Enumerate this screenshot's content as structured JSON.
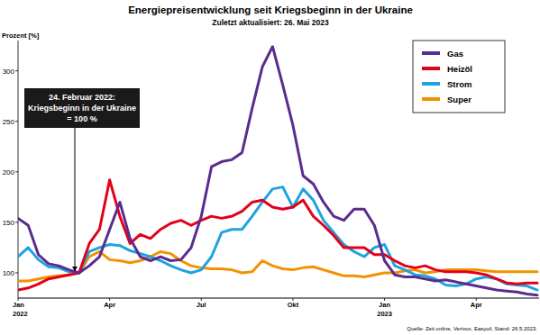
{
  "chart_data": {
    "type": "line",
    "title": "Energiepreisentwicklung seit Kriegsbeginn in der Ukraine",
    "subtitle": "Zuletzt aktualisiert: 26. Mai 2023",
    "y_label": "Prozent [%]",
    "source": "Quelle: Zeit online, Verivox, Easyoil, Stand: 26.5.2023.",
    "annotations": [
      {
        "text": [
          "24. Februar 2022:",
          "Kriegsbeginn in der Ukraine",
          "= 100 %"
        ]
      }
    ],
    "categories": [
      "Jan 2022",
      null,
      null,
      null,
      null,
      null,
      null,
      null,
      null,
      "Apr",
      null,
      null,
      null,
      null,
      null,
      null,
      null,
      null,
      "Jul",
      null,
      null,
      null,
      null,
      null,
      null,
      null,
      null,
      "Okt",
      null,
      null,
      null,
      null,
      null,
      null,
      null,
      null,
      "Jan 2023",
      null,
      null,
      null,
      null,
      null,
      null,
      null,
      null,
      "Apr",
      null,
      null,
      null,
      null,
      null,
      null
    ],
    "series": [
      {
        "name": "Gas",
        "color": "#5b2c8f",
        "values": [
          154,
          147,
          118,
          109,
          107,
          103,
          100,
          107,
          116,
          143,
          170,
          134,
          116,
          112,
          116,
          112,
          113,
          125,
          156,
          205,
          210,
          212,
          219,
          263,
          304,
          324,
          286,
          246,
          196,
          188,
          170,
          156,
          152,
          163,
          163,
          147,
          112,
          98,
          96,
          96,
          94,
          92,
          93,
          91,
          89,
          87,
          85,
          83,
          82,
          81,
          79,
          78
        ]
      },
      {
        "name": "Heizöl",
        "color": "#e3001b",
        "values": [
          83,
          85,
          89,
          94,
          96,
          98,
          100,
          129,
          143,
          192,
          156,
          129,
          138,
          134,
          143,
          149,
          152,
          147,
          152,
          156,
          154,
          156,
          161,
          170,
          172,
          165,
          163,
          165,
          172,
          156,
          147,
          137,
          125,
          125,
          125,
          118,
          118,
          112,
          107,
          105,
          107,
          103,
          101,
          101,
          101,
          100,
          98,
          94,
          90,
          89,
          90,
          90
        ]
      },
      {
        "name": "Strom",
        "color": "#1fa3e0",
        "values": [
          116,
          125,
          113,
          106,
          105,
          101,
          100,
          121,
          125,
          128,
          127,
          122,
          119,
          116,
          112,
          107,
          103,
          100,
          103,
          116,
          140,
          143,
          143,
          156,
          170,
          183,
          185,
          165,
          183,
          172,
          152,
          140,
          128,
          121,
          116,
          125,
          128,
          107,
          103,
          98,
          97,
          94,
          88,
          87,
          89,
          94,
          96,
          94,
          89,
          88,
          87,
          83
        ]
      },
      {
        "name": "Super",
        "color": "#f39200",
        "values": [
          92,
          92,
          94,
          96,
          97,
          98,
          100,
          116,
          121,
          113,
          112,
          110,
          112,
          116,
          121,
          119,
          112,
          107,
          105,
          104,
          104,
          103,
          100,
          101,
          112,
          107,
          104,
          103,
          105,
          106,
          103,
          100,
          97,
          97,
          96,
          98,
          100,
          100,
          102,
          103,
          100,
          101,
          103,
          103,
          103,
          103,
          102,
          101,
          101,
          101,
          101,
          101
        ]
      }
    ],
    "ylim": [
      75,
      330
    ],
    "yticks": [
      100,
      150,
      200,
      250,
      300
    ],
    "grid": false,
    "legend": "top-right"
  }
}
